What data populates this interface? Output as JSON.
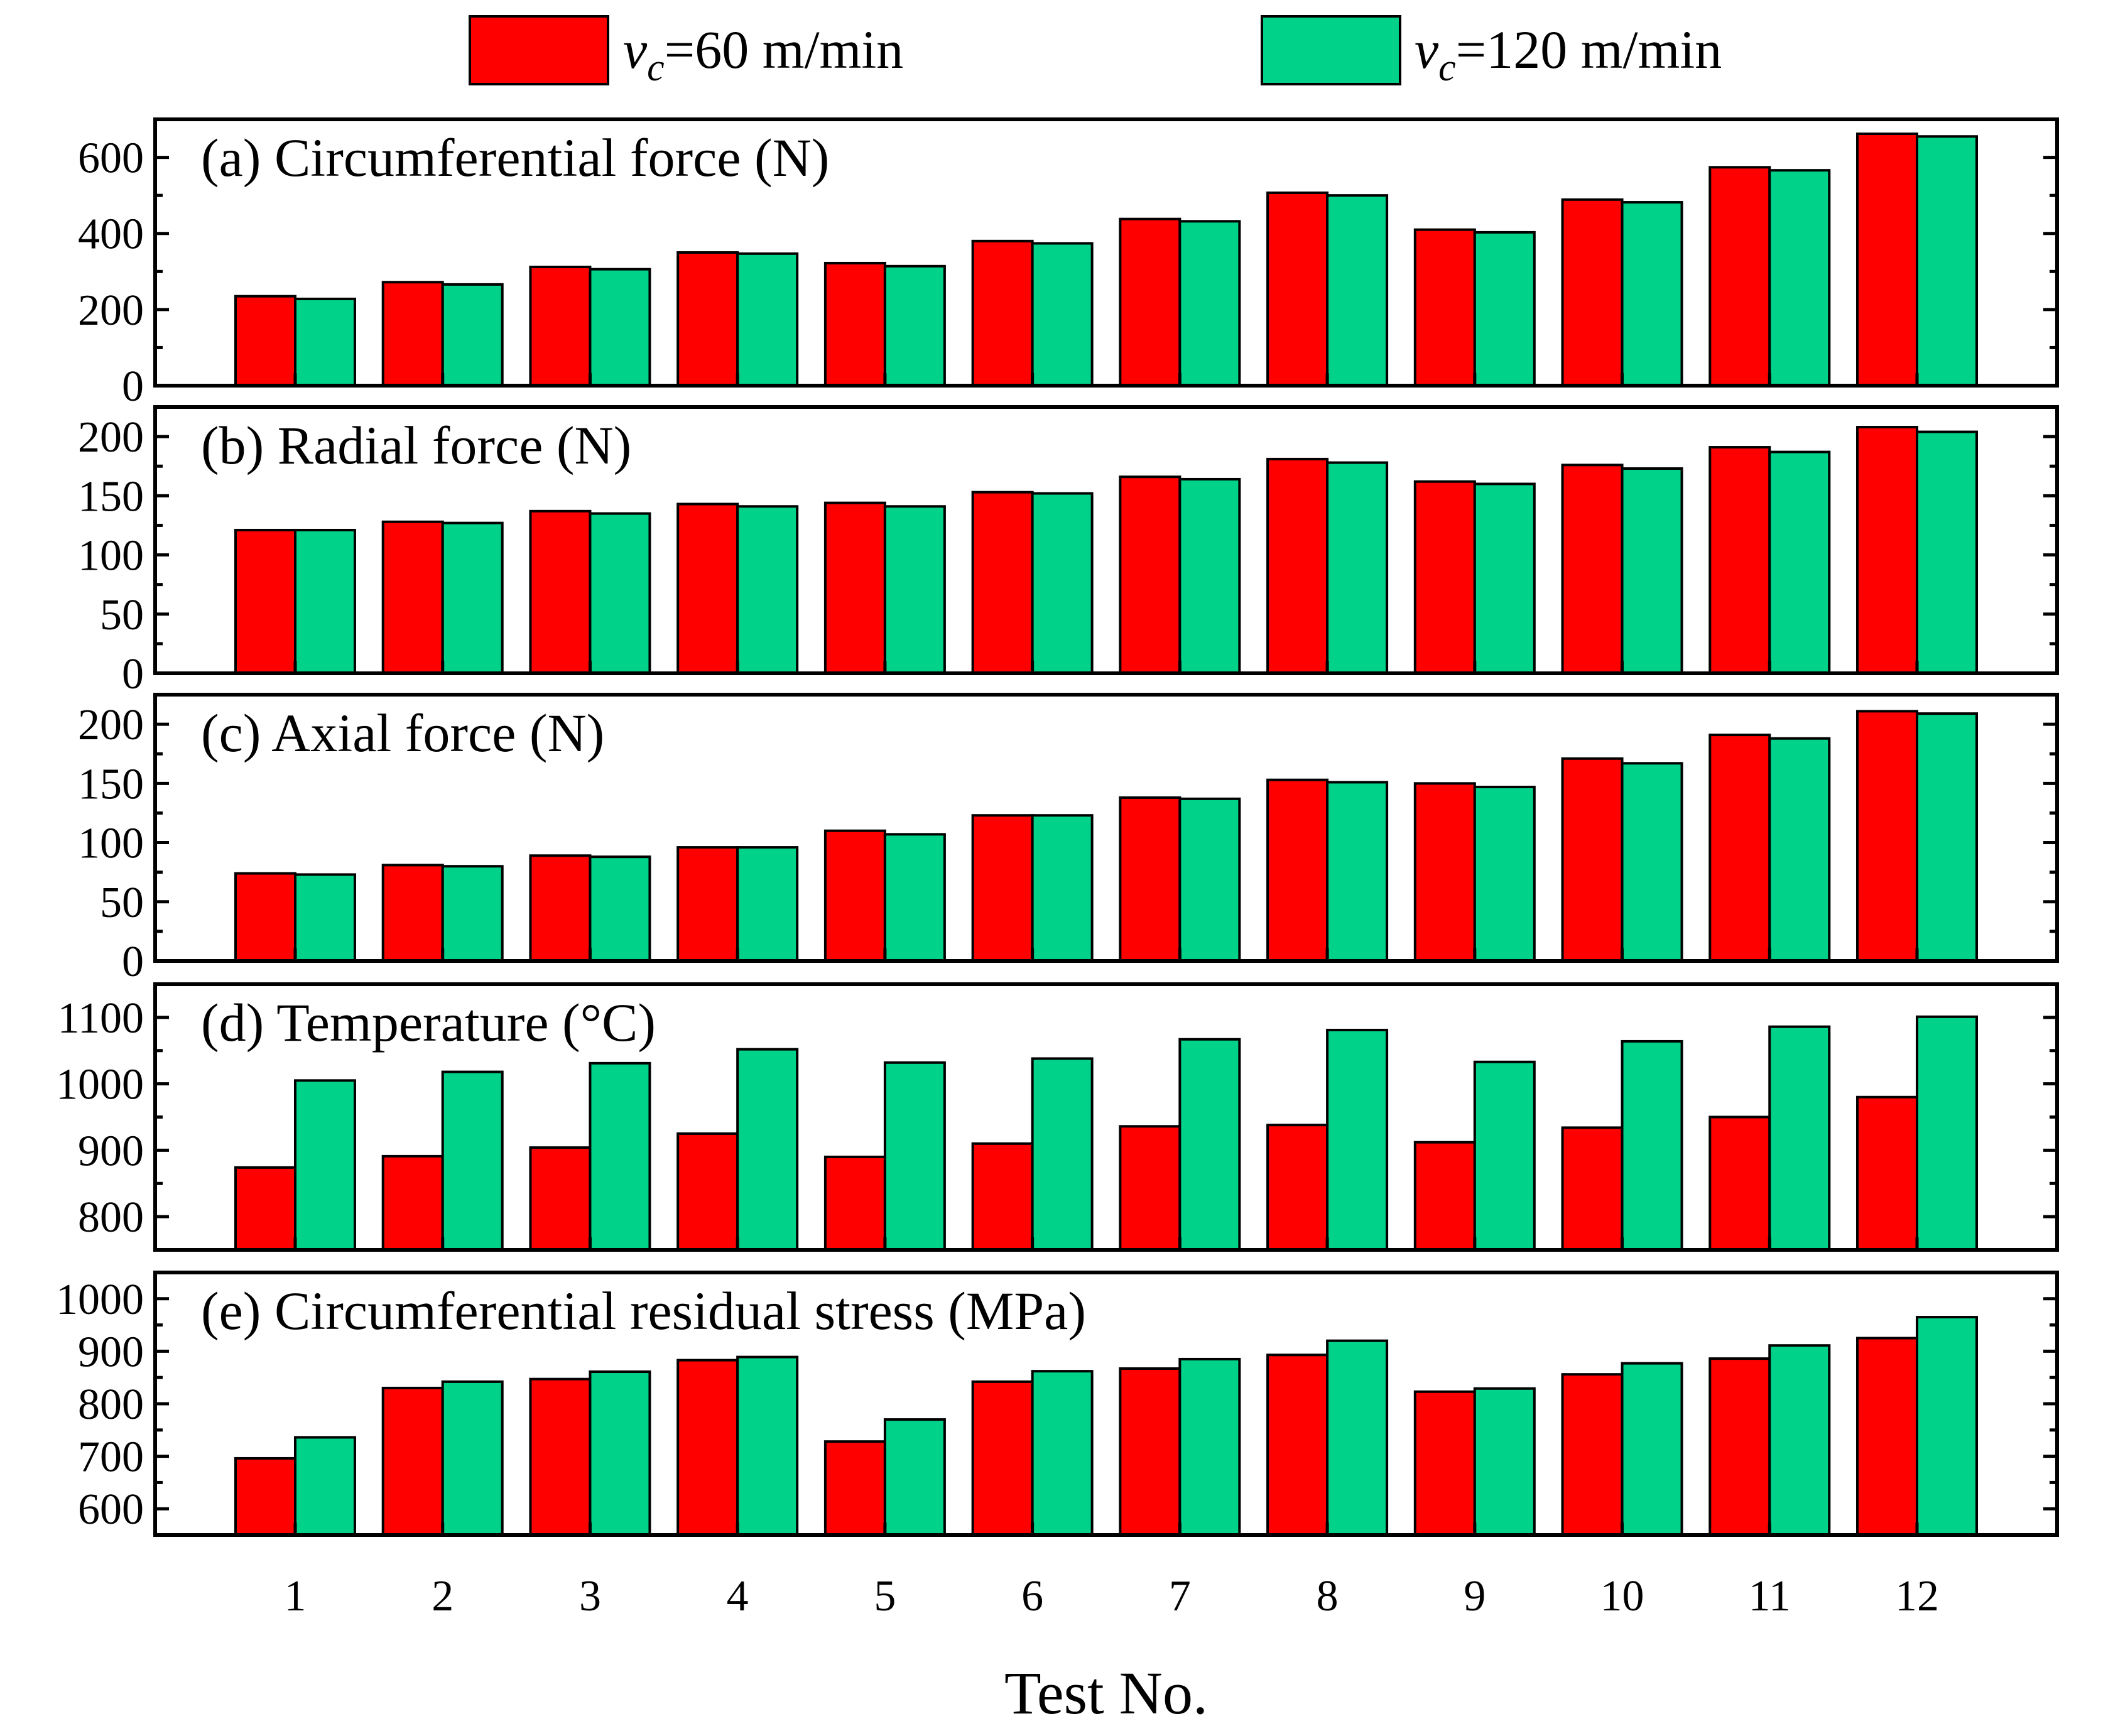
{
  "chart_data": {
    "type": "bar",
    "title": "",
    "xlabel": "Test No.",
    "categories": [
      "1",
      "2",
      "3",
      "4",
      "5",
      "6",
      "7",
      "8",
      "9",
      "10",
      "11",
      "12"
    ],
    "legend": {
      "position": "top",
      "entries": [
        {
          "symbol": "v",
          "subscript": "c",
          "text": "=60 m/min",
          "color": "#ff0000"
        },
        {
          "symbol": "v",
          "subscript": "c",
          "text": "=120 m/min",
          "color": "#00d28a"
        }
      ]
    },
    "panels": [
      {
        "title": "(a) Circumferential force (N)",
        "ylim": [
          0,
          700
        ],
        "yticks": [
          0,
          200,
          400,
          600
        ],
        "ytick_labels": [
          "0",
          "200",
          "400",
          "600"
        ],
        "series": [
          {
            "name": "vc=60 m/min",
            "values": [
              235,
              272,
              312,
              350,
              322,
              380,
              438,
              507,
              410,
              489,
              574,
              662
            ]
          },
          {
            "name": "vc=120 m/min",
            "values": [
              228,
              266,
              306,
              347,
              314,
              374,
              432,
              500,
              403,
              482,
              566,
              655
            ]
          }
        ]
      },
      {
        "title": "(b) Radial force (N)",
        "ylim": [
          0,
          225
        ],
        "yticks": [
          0,
          50,
          100,
          150,
          200
        ],
        "ytick_labels": [
          "0",
          "50",
          "100",
          "150",
          "200"
        ],
        "series": [
          {
            "name": "vc=60 m/min",
            "values": [
              121,
              128,
              137,
              143,
              144,
              153,
              166,
              181,
              162,
              176,
              191,
              208
            ]
          },
          {
            "name": "vc=120 m/min",
            "values": [
              121,
              127,
              135,
              141,
              141,
              152,
              164,
              178,
              160,
              173,
              187,
              204
            ]
          }
        ]
      },
      {
        "title": "(c) Axial force (N)",
        "ylim": [
          0,
          225
        ],
        "yticks": [
          0,
          50,
          100,
          150,
          200
        ],
        "ytick_labels": [
          "0",
          "50",
          "100",
          "150",
          "200"
        ],
        "series": [
          {
            "name": "vc=60 m/min",
            "values": [
              74,
              81,
              89,
              96,
              110,
              123,
              138,
              153,
              150,
              171,
              191,
              211
            ]
          },
          {
            "name": "vc=120 m/min",
            "values": [
              73,
              80,
              88,
              96,
              107,
              123,
              137,
              151,
              147,
              167,
              188,
              209
            ]
          }
        ]
      },
      {
        "title": "(d) Temperature (°C)",
        "ylim": [
          750,
          1150
        ],
        "yticks": [
          800,
          900,
          1000,
          1100
        ],
        "ytick_labels": [
          "800",
          "900",
          "1000",
          "1100"
        ],
        "series": [
          {
            "name": "vc=60 m/min",
            "values": [
              874,
              891,
              904,
              925,
              890,
              910,
              936,
              938,
              912,
              934,
              950,
              980
            ]
          },
          {
            "name": "vc=120 m/min",
            "values": [
              1005,
              1018,
              1031,
              1052,
              1032,
              1038,
              1067,
              1081,
              1033,
              1064,
              1086,
              1101
            ]
          }
        ]
      },
      {
        "title": "(e) Circumferential residual stress (MPa)",
        "ylim": [
          550,
          1050
        ],
        "yticks": [
          600,
          700,
          800,
          900,
          1000
        ],
        "ytick_labels": [
          "600",
          "700",
          "800",
          "900",
          "1000"
        ],
        "series": [
          {
            "name": "vc=60 m/min",
            "values": [
              696,
              830,
              847,
              883,
              728,
              842,
              867,
              893,
              823,
              856,
              886,
              925
            ]
          },
          {
            "name": "vc=120 m/min",
            "values": [
              736,
              842,
              861,
              889,
              770,
              862,
              885,
              920,
              829,
              877,
              911,
              965
            ]
          }
        ]
      }
    ]
  }
}
